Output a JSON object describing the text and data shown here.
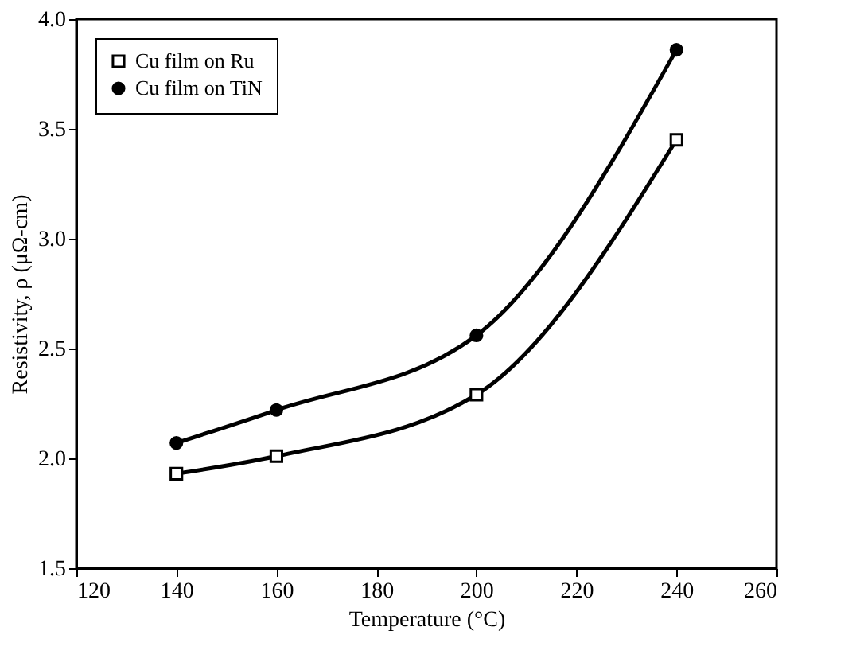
{
  "chart_data": {
    "type": "line",
    "xlabel": "Temperature (°C)",
    "ylabel": "Resistivity, ρ (μΩ-cm)",
    "x": [
      140,
      160,
      200,
      240
    ],
    "series": [
      {
        "name": "Cu film on Ru",
        "color": "#000000",
        "marker": "square",
        "values": [
          1.93,
          2.01,
          2.29,
          3.45
        ]
      },
      {
        "name": "Cu film on TiN",
        "color": "#000000",
        "marker": "circle",
        "values": [
          2.07,
          2.22,
          2.56,
          3.86
        ]
      }
    ],
    "xlim": [
      120,
      260
    ],
    "xticks": [
      120,
      140,
      160,
      180,
      200,
      220,
      240,
      260
    ],
    "ylim": [
      1.5,
      4.0
    ],
    "yticks": [
      1.5,
      {
        "value": 2,
        "label": "2.0"
      },
      2.5,
      {
        "value": 3,
        "label": "3.0"
      },
      3.5,
      {
        "value": 4,
        "label": "4.0"
      }
    ],
    "grid": false,
    "legend": "top left",
    "line_style": "solid"
  }
}
